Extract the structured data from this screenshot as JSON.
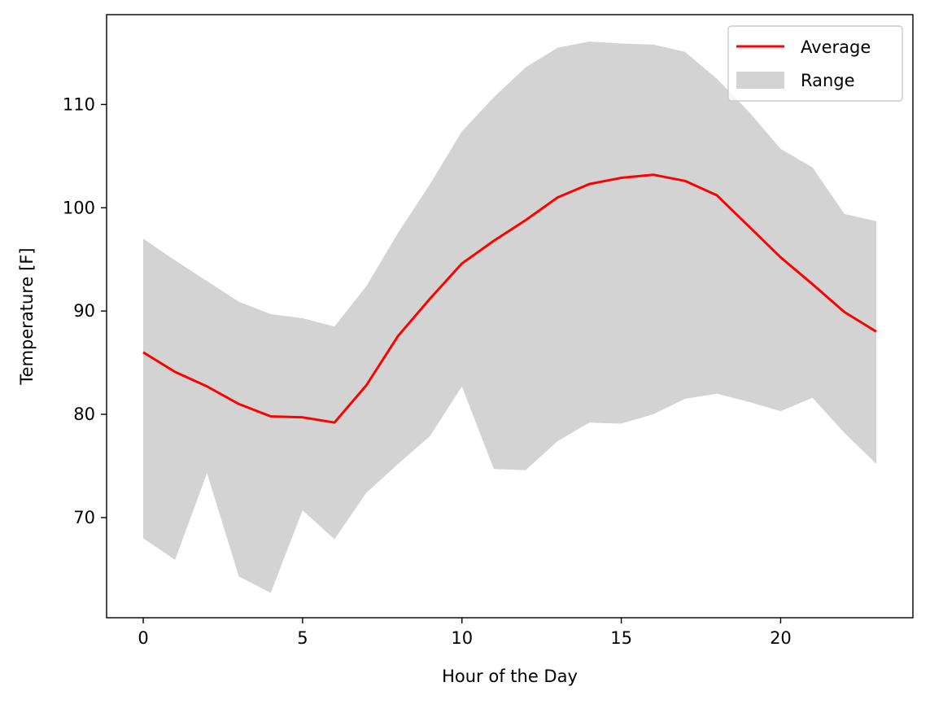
{
  "chart_data": {
    "type": "line",
    "xlabel": "Hour of the Day",
    "ylabel": "Temperature [F]",
    "xlim": [
      -1.15,
      24.15
    ],
    "ylim": [
      60.3,
      118.7
    ],
    "xticks": [
      0,
      5,
      10,
      15,
      20
    ],
    "yticks": [
      70,
      80,
      90,
      100,
      110
    ],
    "grid": false,
    "legend": {
      "placement": "upper-right",
      "entries": [
        "Average",
        "Range"
      ]
    },
    "x": [
      0,
      1,
      2,
      3,
      4,
      5,
      6,
      7,
      8,
      9,
      10,
      11,
      12,
      13,
      14,
      15,
      16,
      17,
      18,
      19,
      20,
      21,
      22,
      23
    ],
    "series": [
      {
        "name": "Average",
        "kind": "line",
        "color": "#ff0000",
        "values": [
          86.0,
          84.1,
          82.7,
          81.0,
          79.8,
          79.7,
          79.2,
          82.8,
          87.6,
          91.2,
          94.6,
          96.8,
          98.8,
          101.0,
          102.3,
          102.9,
          103.2,
          102.6,
          101.2,
          98.2,
          95.2,
          92.6,
          89.9,
          88.0
        ]
      },
      {
        "name": "Range",
        "kind": "band",
        "color": "#d3d3d3",
        "lower": [
          68.0,
          65.9,
          74.3,
          64.3,
          62.7,
          70.7,
          67.9,
          72.4,
          75.2,
          77.9,
          82.7,
          74.7,
          74.6,
          77.4,
          79.2,
          79.1,
          80.0,
          81.5,
          82.0,
          81.2,
          80.3,
          81.6,
          78.2,
          75.2
        ],
        "upper": [
          97.0,
          94.9,
          92.9,
          90.9,
          89.7,
          89.3,
          88.5,
          92.4,
          97.6,
          102.3,
          107.4,
          110.7,
          113.6,
          115.5,
          116.1,
          115.9,
          115.8,
          115.1,
          112.5,
          109.3,
          105.7,
          103.9,
          99.4,
          98.7
        ]
      }
    ]
  }
}
